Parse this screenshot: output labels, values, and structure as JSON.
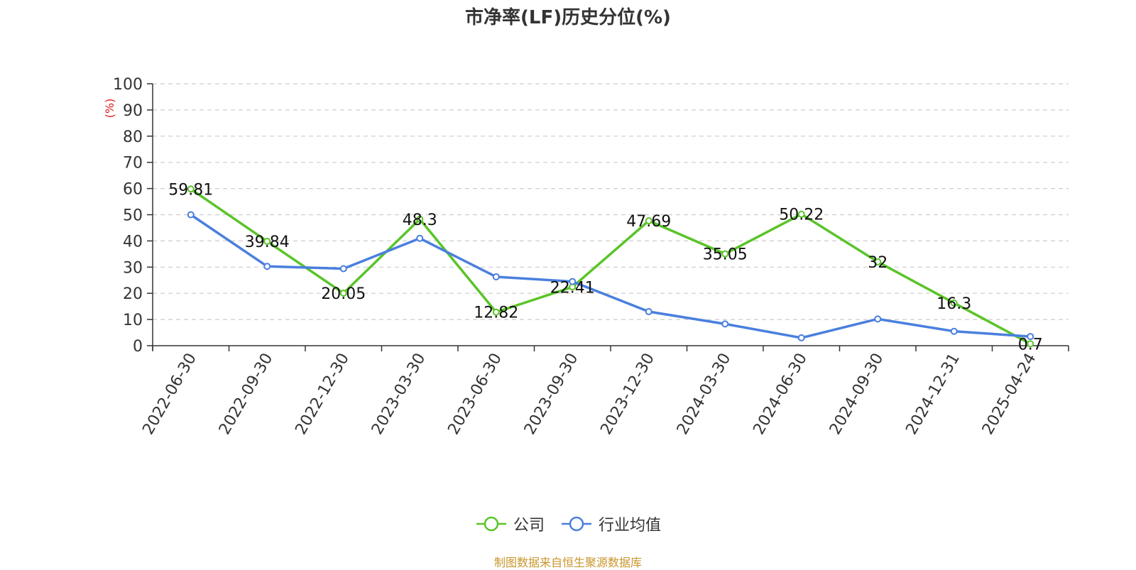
{
  "chart_data": {
    "type": "line",
    "title": "市净率(LF)历史分位(%)",
    "ylabel": "(%)",
    "xlabel": "",
    "ylim": [
      0,
      100
    ],
    "yticks": [
      0,
      10,
      20,
      30,
      40,
      50,
      60,
      70,
      80,
      90,
      100
    ],
    "grid": true,
    "legend_position": "bottom-center",
    "categories": [
      "2022-06-30",
      "2022-09-30",
      "2022-12-30",
      "2023-03-30",
      "2023-06-30",
      "2023-09-30",
      "2023-12-30",
      "2024-03-30",
      "2024-06-30",
      "2024-09-30",
      "2024-12-31",
      "2025-04-24"
    ],
    "series": [
      {
        "name": "公司",
        "color": "#5ac429",
        "values": [
          59.81,
          39.84,
          20.05,
          48.3,
          12.82,
          22.41,
          47.69,
          35.05,
          50.22,
          32,
          16.3,
          0.7
        ],
        "labels": [
          "59.81",
          "39.84",
          "20.05",
          "48.3",
          "12.82",
          "22.41",
          "47.69",
          "35.05",
          "50.22",
          "32",
          "16.3",
          "0.7"
        ]
      },
      {
        "name": "行业均值",
        "color": "#4a7fde",
        "values": [
          50,
          30.3,
          29.4,
          41,
          26.3,
          24.5,
          13,
          8.3,
          3,
          10.2,
          5.5,
          3.5
        ]
      }
    ]
  },
  "source_note": "制图数据来自恒生聚源数据库",
  "colors": {
    "axis_label": "#e01b1b",
    "axis": "#333333",
    "grid": "#cccccc",
    "source_note": "#c8962c"
  }
}
